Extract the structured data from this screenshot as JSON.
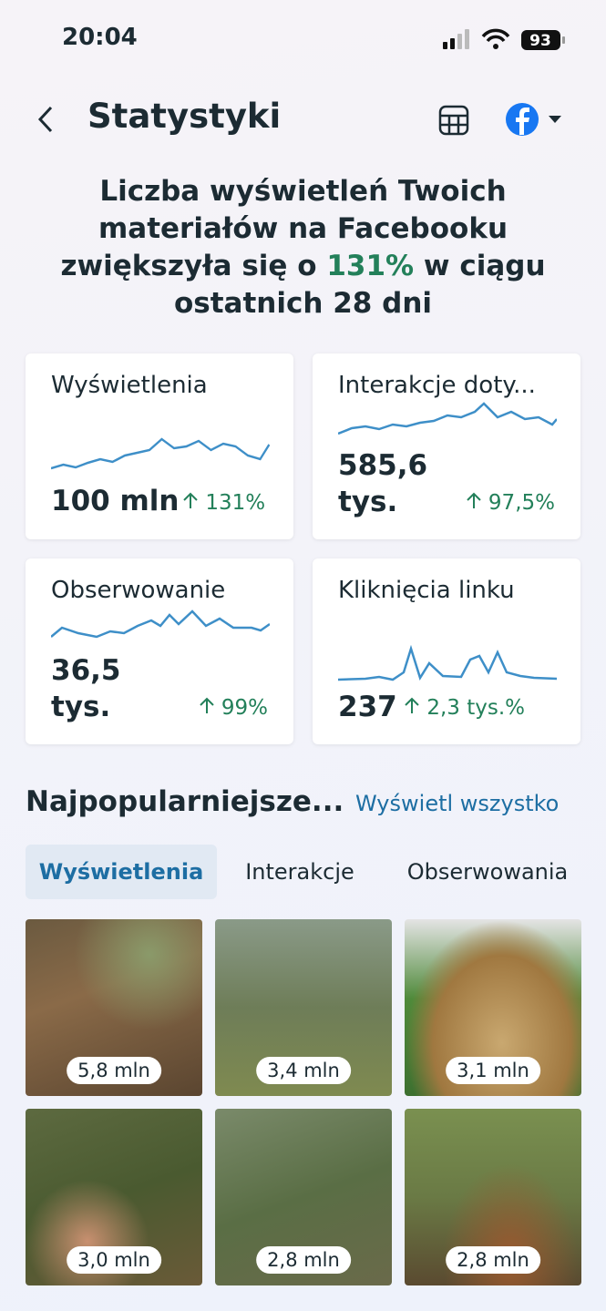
{
  "status_bar": {
    "time": "20:04",
    "battery": "93"
  },
  "header": {
    "title": "Statystyki"
  },
  "headline": {
    "before": "Liczba wyświetleń Twoich materiałów na Facebooku zwiększyła się o",
    "highlight": "131%",
    "after": "w ciągu ostatnich 28 dni"
  },
  "cards": [
    {
      "title": "Wyświetlenia",
      "value": "100 mln",
      "change": "131%"
    },
    {
      "title": "Interakcje doty...",
      "value": "585,6 tys.",
      "change": "97,5%"
    },
    {
      "title": "Obserwowanie",
      "value": "36,5 tys.",
      "change": "99%"
    },
    {
      "title": "Kliknięcia linku",
      "value": "237",
      "change": "2,3 tys.%"
    }
  ],
  "top_content": {
    "title": "Najpopularniejsze...",
    "link": "Wyświetl wszystko",
    "tabs": [
      "Wyświetlenia",
      "Interakcje",
      "Obserwowania"
    ],
    "items": [
      {
        "label": "5,8 mln"
      },
      {
        "label": "3,4 mln"
      },
      {
        "label": "3,1 mln"
      },
      {
        "label": "3,0 mln"
      },
      {
        "label": "2,8 mln"
      },
      {
        "label": "2,8 mln"
      }
    ]
  }
}
